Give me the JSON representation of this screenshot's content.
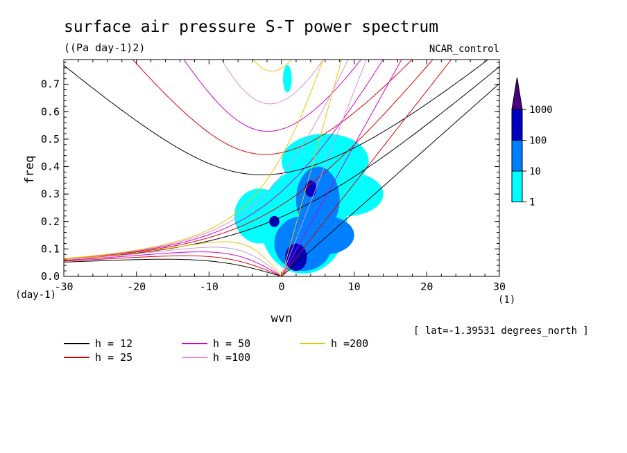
{
  "chart_data": {
    "type": "heatmap",
    "title": "surface air pressure S-T power spectrum",
    "units_label": "((Pa day-1)2)",
    "dataset_label": "NCAR_control",
    "xlabel": "wvn",
    "ylabel": "freq",
    "x_unit_label": "(1)",
    "y_unit_label": "(day-1)",
    "latitude_note": "[ lat=-1.39531 degrees_north ]",
    "xlim": [
      -30,
      30
    ],
    "ylim": [
      0,
      0.79
    ],
    "x_ticks": [
      -30,
      -20,
      -10,
      0,
      10,
      20,
      30
    ],
    "x_tick_labels": [
      "-30",
      "-20",
      "-10",
      "0",
      "10",
      "20",
      "30"
    ],
    "y_ticks": [
      0,
      0.1,
      0.2,
      0.3,
      0.4,
      0.5,
      0.6,
      0.7
    ],
    "y_tick_labels": [
      "0.0",
      "0.1",
      "0.2",
      "0.3",
      "0.4",
      "0.5",
      "0.6",
      "0.7"
    ],
    "colorbar": {
      "levels": [
        "1",
        "10",
        "100",
        "1000"
      ],
      "colors": [
        "#00ffff",
        "#0080ff",
        "#0000c0",
        "#4b0082"
      ]
    },
    "dispersion_curves": [
      {
        "label": "h = 12",
        "color": "#000000",
        "h": 12
      },
      {
        "label": "h = 25",
        "color": "#e00000",
        "h": 25
      },
      {
        "label": "h = 50",
        "color": "#d000d0",
        "h": 50
      },
      {
        "label": "h =100",
        "color": "#d890d8",
        "h": 100
      },
      {
        "label": "h =200",
        "color": "#f0c000",
        "h": 200
      }
    ],
    "contour_regions": [
      {
        "level": 1,
        "x": -3,
        "y": 0.22,
        "rx": 3.5,
        "ry": 0.1
      },
      {
        "level": 1,
        "x": 3,
        "y": 0.2,
        "rx": 6,
        "ry": 0.19
      },
      {
        "level": 1,
        "x": 6,
        "y": 0.42,
        "rx": 6,
        "ry": 0.1
      },
      {
        "level": 1,
        "x": 9,
        "y": 0.3,
        "rx": 5,
        "ry": 0.08
      },
      {
        "level": 1,
        "x": 0.8,
        "y": 0.72,
        "rx": 0.6,
        "ry": 0.05
      },
      {
        "level": 10,
        "x": 3,
        "y": 0.12,
        "rx": 4,
        "ry": 0.1
      },
      {
        "level": 10,
        "x": 5,
        "y": 0.28,
        "rx": 3,
        "ry": 0.12
      },
      {
        "level": 10,
        "x": 6,
        "y": 0.15,
        "rx": 4,
        "ry": 0.07
      },
      {
        "level": 100,
        "x": -1,
        "y": 0.2,
        "rx": 0.7,
        "ry": 0.02
      },
      {
        "level": 100,
        "x": 2,
        "y": 0.07,
        "rx": 1.5,
        "ry": 0.05
      },
      {
        "level": 100,
        "x": 4,
        "y": 0.32,
        "rx": 0.8,
        "ry": 0.03
      }
    ]
  }
}
